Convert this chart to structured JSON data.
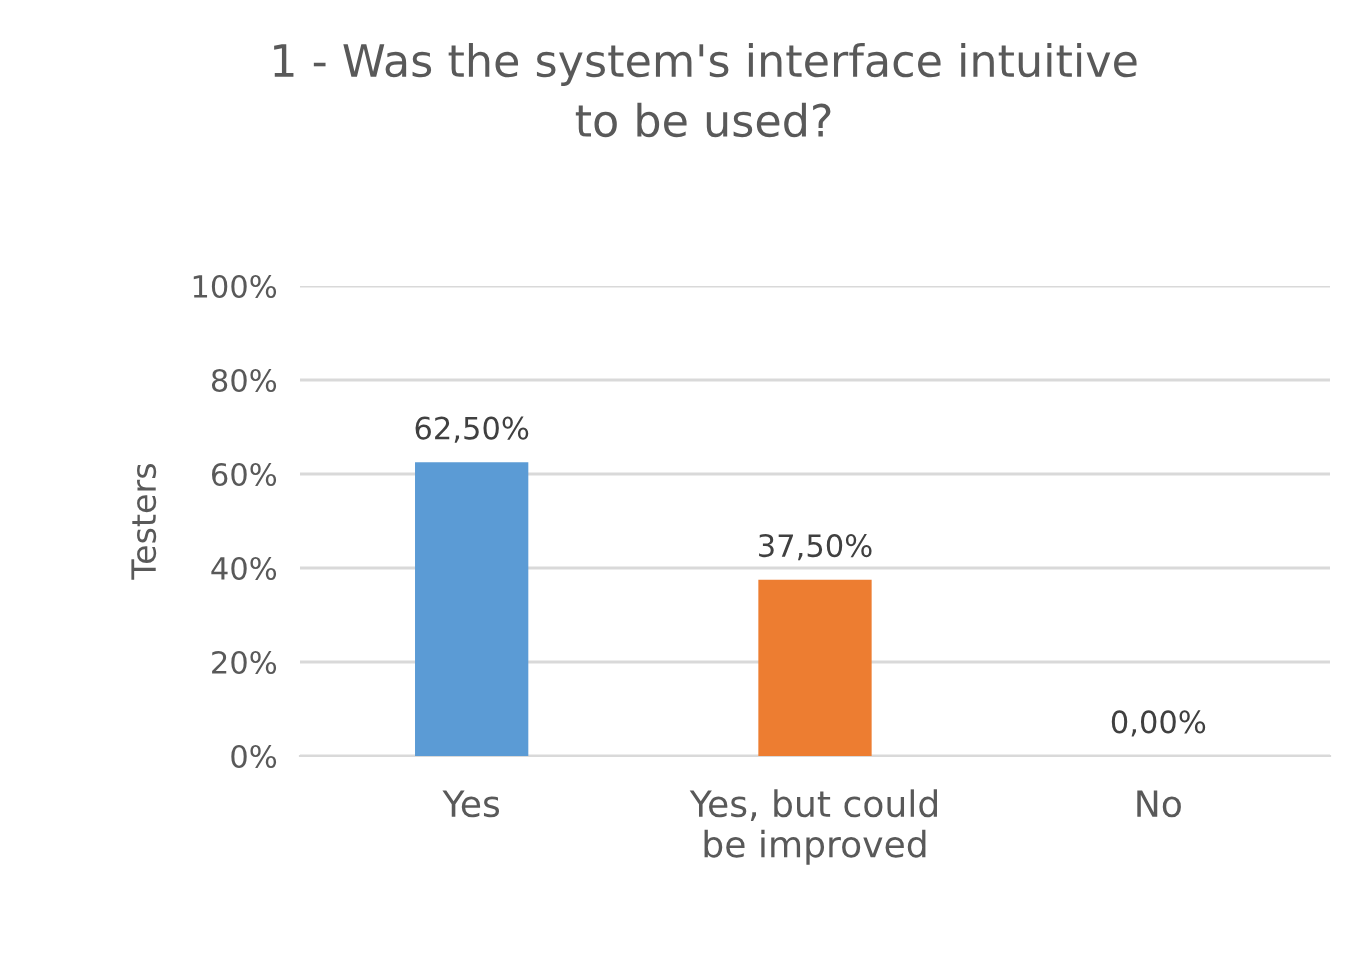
{
  "chart_data": {
    "type": "bar",
    "title": "1 - Was the system's interface intuitive\nto be used?",
    "ylabel": "Testers",
    "categories": [
      "Yes",
      "Yes, but could\nbe improved",
      "No"
    ],
    "values": [
      62.5,
      37.5,
      0
    ],
    "value_labels": [
      "62,50%",
      "37,50%",
      "0,00%"
    ],
    "colors": [
      "#5b9bd5",
      "#ed7d31",
      "#a5a5a5"
    ],
    "ylim": [
      0,
      100
    ],
    "yticks": [
      {
        "value": 0,
        "label": "0%"
      },
      {
        "value": 20,
        "label": "20%"
      },
      {
        "value": 40,
        "label": "40%"
      },
      {
        "value": 60,
        "label": "60%"
      },
      {
        "value": 80,
        "label": "80%"
      },
      {
        "value": 100,
        "label": "100%"
      }
    ],
    "grid": "y",
    "legend": false
  }
}
